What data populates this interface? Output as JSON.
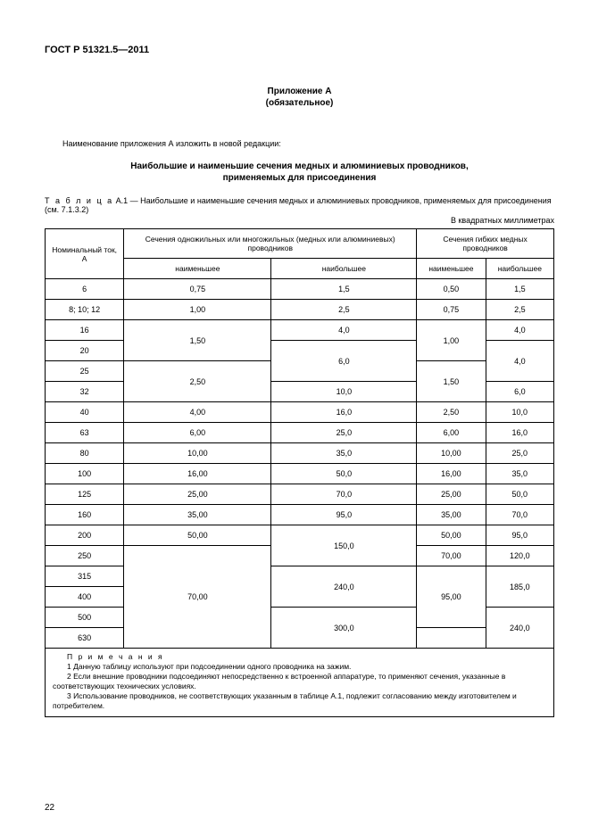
{
  "doc": {
    "header": "ГОСТ Р 51321.5—2011",
    "appendix_title": "Приложение А",
    "appendix_subtitle": "(обязательное)",
    "intro": "Наименование приложения А изложить в новой редакции:",
    "main_title": "Наибольшие и наименьшие сечения медных и алюминиевых проводников,",
    "main_subtitle": "применяемых для присоединения",
    "table_label_spaced": "Т а б л и ц а",
    "table_label_rest": "  А.1 — Наибольшие и наименьшие сечения медных и алюминиевых проводников, применяемых для присоединения (см. 7.1.3.2)",
    "units": "В квадратных миллиметрах",
    "page_number": "22"
  },
  "table": {
    "header": {
      "nominal": "Номинальный ток, А",
      "group1": "Сечения одножильных или многожильных (медных или алюминиевых) проводников",
      "group2": "Сечения гибких медных проводников",
      "min": "наименьшее",
      "max": "наибольшее"
    }
  },
  "notes": {
    "title": "П р и м е ч а н и я",
    "n1": "1  Данную таблицу используют при подсоединении одного проводника на зажим.",
    "n2": "2  Если внешние проводники подсоединяют непосредственно к встроенной аппаратуре, то применяют сечения, указанные в соответствующих технических условиях.",
    "n3": "3  Использование проводников, не соответствующих указанным в таблице А.1, подлежит согласованию между изготовителем и потребителем."
  },
  "style": {
    "border_color": "#000000",
    "background": "#ffffff",
    "font_base": 9
  }
}
